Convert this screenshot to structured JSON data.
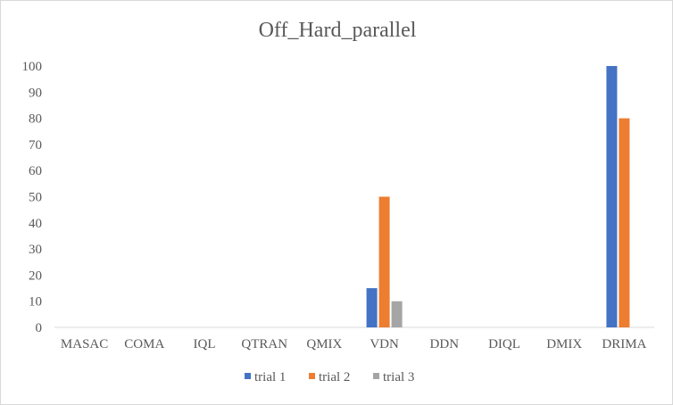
{
  "chart_data": {
    "type": "bar",
    "title": "Off_Hard_parallel",
    "xlabel": "",
    "ylabel": "",
    "categories": [
      "MASAC",
      "COMA",
      "IQL",
      "QTRAN",
      "QMIX",
      "VDN",
      "DDN",
      "DIQL",
      "DMIX",
      "DRIMA"
    ],
    "series": [
      {
        "name": "trial 1",
        "color": "#4472c4",
        "values": [
          0,
          0,
          0,
          0,
          0,
          15,
          0,
          0,
          0,
          100
        ]
      },
      {
        "name": "trial 2",
        "color": "#ed7d31",
        "values": [
          0,
          0,
          0,
          0,
          0,
          50,
          0,
          0,
          0,
          80
        ]
      },
      {
        "name": "trial 3",
        "color": "#a5a5a5",
        "values": [
          0,
          0,
          0,
          0,
          0,
          10,
          0,
          0,
          0,
          0
        ]
      }
    ],
    "ylim": [
      0,
      100
    ],
    "yticks": [
      0,
      10,
      20,
      30,
      40,
      50,
      60,
      70,
      80,
      90,
      100
    ],
    "grid": false,
    "legend_position": "bottom"
  }
}
